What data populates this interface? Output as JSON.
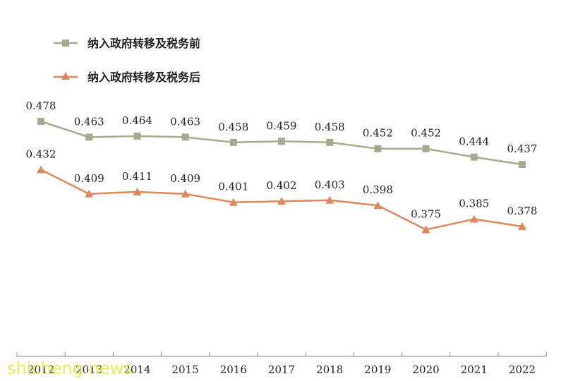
{
  "chart_data": {
    "type": "line",
    "categories": [
      "2012",
      "2013",
      "2014",
      "2015",
      "2016",
      "2017",
      "2018",
      "2019",
      "2020",
      "2021",
      "2022"
    ],
    "series": [
      {
        "name": "纳入政府转移及税务前",
        "values": [
          0.478,
          0.463,
          0.464,
          0.463,
          0.458,
          0.459,
          0.458,
          0.452,
          0.452,
          0.444,
          0.437
        ],
        "labels": [
          "0.478",
          "0.463",
          "0.464",
          "0.463",
          "0.458",
          "0.459",
          "0.458",
          "0.452",
          "0.452",
          "0.444",
          "0.437"
        ],
        "color": "#a3ad8c",
        "marker": "square"
      },
      {
        "name": "纳入政府转移及税务后",
        "values": [
          0.432,
          0.409,
          0.411,
          0.409,
          0.401,
          0.402,
          0.403,
          0.398,
          0.375,
          0.385,
          0.378
        ],
        "labels": [
          "0.432",
          "0.409",
          "0.411",
          "0.409",
          "0.401",
          "0.402",
          "0.403",
          "0.398",
          "0.375",
          "0.385",
          "0.378"
        ],
        "color": "#e0875a",
        "marker": "triangle"
      }
    ],
    "title": "",
    "xlabel": "",
    "ylabel": "",
    "legend_position": "top-left",
    "grid": false
  },
  "watermark": "shicheng.news",
  "axis_color": "#888888"
}
